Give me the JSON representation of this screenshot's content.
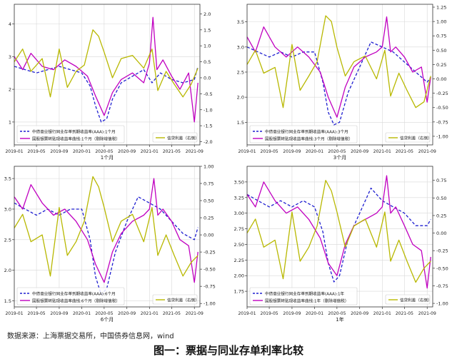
{
  "source_note": "数据来源：上海票据交易所，中国债券信息网，wind",
  "caption": "图一：票据与同业存单利率比较",
  "colors": {
    "ncd": "#1f1fd0",
    "bill": "#c000c0",
    "spread": "#b8b800"
  },
  "chart_data": [
    {
      "type": "line",
      "title": "",
      "xlabel": "1个月",
      "x_ticks": [
        "2019-01",
        "2019-05",
        "2019-09",
        "2020-01",
        "2020-05",
        "2020-09",
        "2021-01",
        "2021-05",
        "2021-09"
      ],
      "x_range": [
        "2019-01-01",
        "2021-10-01"
      ],
      "left_ylim": [
        0.3,
        4.6
      ],
      "left_ticks": [
        1,
        2,
        3,
        4
      ],
      "right_ylim": [
        -2.1,
        2.3
      ],
      "right_ticks": [
        -2.0,
        -1.5,
        -1.0,
        -0.5,
        0.0,
        0.5,
        1.0,
        1.5,
        2.0
      ],
      "grid": true,
      "legend_left": [
        "中债商业银行同业存单到期收益率(AAA):1个月",
        "国股银票转贴现收益率曲线:1个月（剔除增值税）"
      ],
      "legend_right": [
        "信贷利差（右侧）"
      ],
      "series": [
        {
          "name": "中债商业银行同业存单到期收益率(AAA):1个月",
          "axis": "left",
          "style": "dashed",
          "color": "ncd",
          "x": [
            "2019-01-01",
            "2019-03-01",
            "2019-05-01",
            "2019-07-01",
            "2019-09-01",
            "2019-11-01",
            "2020-01-01",
            "2020-02-15",
            "2020-03-15",
            "2020-04-15",
            "2020-05-15",
            "2020-06-15",
            "2020-08-01",
            "2020-10-01",
            "2020-12-01",
            "2021-01-15",
            "2021-03-01",
            "2021-05-01",
            "2021-07-01",
            "2021-09-01",
            "2021-09-20"
          ],
          "y": [
            2.7,
            2.6,
            2.5,
            2.6,
            2.7,
            2.6,
            2.5,
            2.1,
            1.5,
            1.0,
            1.1,
            1.7,
            2.2,
            2.4,
            2.6,
            2.2,
            2.5,
            2.3,
            2.2,
            2.3,
            2.7
          ]
        },
        {
          "name": "国股银票转贴现收益率曲线:1个月（剔除增值税）",
          "axis": "left",
          "style": "solid",
          "color": "bill",
          "x": [
            "2019-01-01",
            "2019-02-15",
            "2019-04-01",
            "2019-06-01",
            "2019-08-01",
            "2019-10-01",
            "2019-12-01",
            "2020-02-01",
            "2020-03-15",
            "2020-05-01",
            "2020-06-15",
            "2020-08-01",
            "2020-10-01",
            "2020-12-01",
            "2021-01-01",
            "2021-01-20",
            "2021-02-10",
            "2021-03-15",
            "2021-05-01",
            "2021-06-15",
            "2021-08-01",
            "2021-09-01",
            "2021-09-20"
          ],
          "y": [
            3.0,
            2.6,
            3.1,
            2.7,
            2.6,
            2.9,
            2.7,
            2.4,
            1.8,
            1.2,
            1.9,
            2.3,
            2.5,
            2.2,
            2.8,
            4.2,
            2.6,
            2.9,
            2.4,
            2.0,
            2.5,
            1.0,
            2.2
          ]
        },
        {
          "name": "信贷利差（右侧）",
          "axis": "right",
          "style": "solid",
          "color": "spread",
          "x": [
            "2019-01-01",
            "2019-02-15",
            "2019-04-01",
            "2019-06-01",
            "2019-07-15",
            "2019-09-01",
            "2019-10-15",
            "2019-12-01",
            "2020-01-15",
            "2020-03-01",
            "2020-04-01",
            "2020-05-01",
            "2020-06-15",
            "2020-08-01",
            "2020-10-01",
            "2020-12-01",
            "2021-01-15",
            "2021-02-15",
            "2021-04-01",
            "2021-05-15",
            "2021-07-01",
            "2021-08-15",
            "2021-09-20"
          ],
          "y": [
            0.5,
            0.9,
            0.2,
            0.6,
            -0.6,
            0.9,
            -0.3,
            0.2,
            0.4,
            1.5,
            1.3,
            0.8,
            0.0,
            0.6,
            0.7,
            0.3,
            0.9,
            -0.4,
            0.2,
            -0.2,
            -0.6,
            -0.2,
            0.3
          ]
        }
      ]
    },
    {
      "type": "line",
      "title": "",
      "xlabel": "3个月",
      "x_ticks": [
        "2019-01",
        "2019-05",
        "2019-09",
        "2020-01",
        "2020-05",
        "2020-09",
        "2021-01",
        "2021-05",
        "2021-09"
      ],
      "x_range": [
        "2019-01-01",
        "2021-10-01"
      ],
      "left_ylim": [
        1.05,
        3.85
      ],
      "left_ticks": [
        1.5,
        2.0,
        2.5,
        3.0,
        3.5
      ],
      "right_ylim": [
        -1.15,
        1.3
      ],
      "right_ticks": [
        -1.0,
        -0.75,
        -0.5,
        -0.25,
        0.0,
        0.25,
        0.5,
        0.75,
        1.0,
        1.25
      ],
      "grid": true,
      "legend_left": [
        "中债商业银行同业存单到期收益率(AAA):3个月",
        "国股银票转贴现收益率曲线:3个月（剔除增值税）"
      ],
      "legend_right": [
        "信贷利差（右侧）"
      ],
      "series": [
        {
          "name": "中债商业银行同业存单到期收益率(AAA):3个月",
          "axis": "left",
          "style": "dashed",
          "color": "ncd",
          "x": [
            "2019-01-01",
            "2019-03-01",
            "2019-05-01",
            "2019-07-01",
            "2019-09-01",
            "2019-11-01",
            "2020-01-01",
            "2020-02-15",
            "2020-03-15",
            "2020-04-15",
            "2020-05-15",
            "2020-07-01",
            "2020-09-01",
            "2020-11-01",
            "2021-01-01",
            "2021-03-01",
            "2021-05-01",
            "2021-07-01",
            "2021-09-01",
            "2021-09-20"
          ],
          "y": [
            3.0,
            2.9,
            2.8,
            2.9,
            2.8,
            2.9,
            2.9,
            2.3,
            1.7,
            1.45,
            1.5,
            2.1,
            2.6,
            3.1,
            3.0,
            2.9,
            2.7,
            2.5,
            2.3,
            2.4
          ]
        },
        {
          "name": "国股银票转贴现收益率曲线:3个月（剔除增值税）",
          "axis": "left",
          "style": "solid",
          "color": "bill",
          "x": [
            "2019-01-01",
            "2019-02-15",
            "2019-04-01",
            "2019-06-01",
            "2019-08-01",
            "2019-10-01",
            "2019-12-01",
            "2020-02-01",
            "2020-03-15",
            "2020-05-01",
            "2020-06-15",
            "2020-08-01",
            "2020-10-01",
            "2020-12-01",
            "2021-01-01",
            "2021-01-25",
            "2021-02-15",
            "2021-03-15",
            "2021-05-01",
            "2021-06-15",
            "2021-08-01",
            "2021-09-01",
            "2021-09-20"
          ],
          "y": [
            3.2,
            2.9,
            3.4,
            3.0,
            2.8,
            3.0,
            2.8,
            2.5,
            2.0,
            1.6,
            2.2,
            2.6,
            2.8,
            2.9,
            3.0,
            3.6,
            2.9,
            3.0,
            2.8,
            2.5,
            2.6,
            1.9,
            2.4
          ]
        },
        {
          "name": "信贷利差（右侧）",
          "axis": "right",
          "style": "solid",
          "color": "spread",
          "x": [
            "2019-01-01",
            "2019-02-15",
            "2019-04-01",
            "2019-06-01",
            "2019-07-15",
            "2019-09-01",
            "2019-10-15",
            "2019-12-01",
            "2020-01-15",
            "2020-03-01",
            "2020-04-01",
            "2020-05-01",
            "2020-06-15",
            "2020-08-01",
            "2020-10-01",
            "2020-12-01",
            "2021-01-15",
            "2021-02-15",
            "2021-04-01",
            "2021-05-15",
            "2021-07-01",
            "2021-08-15",
            "2021-09-20"
          ],
          "y": [
            0.25,
            0.5,
            0.1,
            0.2,
            -0.5,
            0.6,
            -0.2,
            0.05,
            0.3,
            1.1,
            1.0,
            0.55,
            0.05,
            0.3,
            0.4,
            0.0,
            0.5,
            -0.3,
            0.1,
            -0.2,
            -0.5,
            -0.4,
            0.05
          ]
        }
      ]
    },
    {
      "type": "line",
      "title": "",
      "xlabel": "6个月",
      "x_ticks": [
        "2019-01",
        "2019-05",
        "2019-09",
        "2020-01",
        "2020-05",
        "2020-09",
        "2021-01",
        "2021-05",
        "2021-09"
      ],
      "x_range": [
        "2019-01-01",
        "2021-10-01"
      ],
      "left_ylim": [
        1.4,
        3.7
      ],
      "left_ticks": [
        1.5,
        2.0,
        2.5,
        3.0,
        3.5
      ],
      "right_ylim": [
        -1.05,
        1.0
      ],
      "right_ticks": [
        -1.0,
        -0.75,
        -0.5,
        -0.25,
        0.0,
        0.25,
        0.5,
        0.75,
        1.0
      ],
      "grid": true,
      "legend_left": [
        "中债商业银行同业存单到期收益率(AAA):6个月",
        "国股银票转贴现收益率曲线:6个月（剔除增值税）"
      ],
      "legend_right": [
        "信贷利差（右侧）"
      ],
      "series": [
        {
          "name": "中债商业银行同业存单到期收益率(AAA):6个月",
          "axis": "left",
          "style": "dashed",
          "color": "ncd",
          "x": [
            "2019-01-01",
            "2019-03-01",
            "2019-05-01",
            "2019-07-01",
            "2019-09-01",
            "2019-11-01",
            "2020-01-01",
            "2020-02-15",
            "2020-03-15",
            "2020-04-15",
            "2020-05-15",
            "2020-07-01",
            "2020-09-01",
            "2020-11-01",
            "2021-01-01",
            "2021-03-01",
            "2021-05-01",
            "2021-07-01",
            "2021-09-01",
            "2021-09-20"
          ],
          "y": [
            3.1,
            3.0,
            2.9,
            3.0,
            2.9,
            3.0,
            3.0,
            2.5,
            1.9,
            1.6,
            1.7,
            2.3,
            2.8,
            3.2,
            3.1,
            3.0,
            2.8,
            2.6,
            2.5,
            2.7
          ]
        },
        {
          "name": "国股银票转贴现收益率曲线:6个月（剔除增值税）",
          "axis": "left",
          "style": "solid",
          "color": "bill",
          "x": [
            "2019-01-01",
            "2019-02-15",
            "2019-04-01",
            "2019-06-01",
            "2019-08-01",
            "2019-10-01",
            "2019-12-01",
            "2020-02-01",
            "2020-03-15",
            "2020-05-01",
            "2020-06-15",
            "2020-08-01",
            "2020-10-01",
            "2020-12-01",
            "2021-01-01",
            "2021-01-25",
            "2021-02-15",
            "2021-03-15",
            "2021-05-01",
            "2021-06-15",
            "2021-08-01",
            "2021-09-01",
            "2021-09-20"
          ],
          "y": [
            3.2,
            3.0,
            3.4,
            3.1,
            2.9,
            3.0,
            2.8,
            2.5,
            2.1,
            1.8,
            2.3,
            2.6,
            2.8,
            2.9,
            3.0,
            3.5,
            2.9,
            3.0,
            2.8,
            2.5,
            2.4,
            1.8,
            2.3
          ]
        },
        {
          "name": "信贷利差（右侧）",
          "axis": "right",
          "style": "solid",
          "color": "spread",
          "x": [
            "2019-01-01",
            "2019-02-15",
            "2019-04-01",
            "2019-06-01",
            "2019-07-15",
            "2019-09-01",
            "2019-10-15",
            "2019-12-01",
            "2020-01-15",
            "2020-03-01",
            "2020-04-01",
            "2020-05-01",
            "2020-06-15",
            "2020-08-01",
            "2020-10-01",
            "2020-12-01",
            "2021-01-15",
            "2021-02-15",
            "2021-04-01",
            "2021-05-15",
            "2021-07-01",
            "2021-08-15",
            "2021-09-20"
          ],
          "y": [
            0.1,
            0.3,
            -0.1,
            0.0,
            -0.6,
            0.4,
            -0.3,
            -0.1,
            0.2,
            0.85,
            0.7,
            0.4,
            -0.1,
            0.2,
            0.3,
            -0.1,
            0.4,
            -0.3,
            0.0,
            -0.3,
            -0.6,
            -0.4,
            -0.3
          ]
        }
      ]
    },
    {
      "type": "line",
      "title": "",
      "xlabel": "1年",
      "x_ticks": [
        "2019-01",
        "2019-05",
        "2019-09",
        "2020-01",
        "2020-05",
        "2020-09",
        "2021-01",
        "2021-05",
        "2021-09"
      ],
      "x_range": [
        "2019-01-01",
        "2021-10-01"
      ],
      "left_ylim": [
        1.5,
        3.75
      ],
      "left_ticks": [
        1.75,
        2.0,
        2.25,
        2.5,
        2.75,
        3.0,
        3.25,
        3.5
      ],
      "right_ylim": [
        -1.05,
        0.95
      ],
      "right_ticks": [
        -1.0,
        -0.75,
        -0.5,
        -0.25,
        0.0,
        0.25,
        0.5,
        0.75
      ],
      "grid": true,
      "legend_left": [
        "中债商业银行同业存单到期收益率(AAA):1年",
        "国股银票转贴现收益率曲线:1年（剔除增值税）"
      ],
      "legend_right": [
        "信贷利差（右侧）"
      ],
      "series": [
        {
          "name": "中债商业银行同业存单到期收益率(AAA):1年",
          "axis": "left",
          "style": "dashed",
          "color": "ncd",
          "x": [
            "2019-01-01",
            "2019-03-01",
            "2019-05-01",
            "2019-07-01",
            "2019-09-01",
            "2019-11-01",
            "2020-01-01",
            "2020-02-15",
            "2020-03-15",
            "2020-04-15",
            "2020-05-15",
            "2020-07-01",
            "2020-09-01",
            "2020-11-01",
            "2021-01-01",
            "2021-03-01",
            "2021-05-01",
            "2021-07-01",
            "2021-09-01",
            "2021-09-20"
          ],
          "y": [
            3.3,
            3.2,
            3.1,
            3.2,
            3.1,
            3.2,
            3.1,
            2.7,
            2.2,
            1.9,
            2.0,
            2.6,
            3.0,
            3.4,
            3.2,
            3.1,
            3.0,
            2.8,
            2.8,
            2.9
          ]
        },
        {
          "name": "国股银票转贴现收益率曲线:1年（剔除增值税）",
          "axis": "left",
          "style": "solid",
          "color": "bill",
          "x": [
            "2019-01-01",
            "2019-02-15",
            "2019-04-01",
            "2019-06-01",
            "2019-08-01",
            "2019-10-01",
            "2019-12-01",
            "2020-02-01",
            "2020-03-15",
            "2020-05-01",
            "2020-06-15",
            "2020-08-01",
            "2020-10-01",
            "2020-12-01",
            "2021-01-01",
            "2021-01-25",
            "2021-02-15",
            "2021-03-15",
            "2021-05-01",
            "2021-06-15",
            "2021-08-01",
            "2021-09-01",
            "2021-09-20"
          ],
          "y": [
            3.3,
            3.1,
            3.5,
            3.2,
            3.0,
            3.1,
            2.9,
            2.6,
            2.2,
            2.0,
            2.5,
            2.8,
            2.9,
            3.0,
            3.1,
            3.6,
            3.0,
            3.1,
            2.8,
            2.5,
            2.4,
            1.8,
            2.3
          ]
        },
        {
          "name": "信贷利差（右侧）",
          "axis": "right",
          "style": "solid",
          "color": "spread",
          "x": [
            "2019-01-01",
            "2019-02-15",
            "2019-04-01",
            "2019-06-01",
            "2019-07-15",
            "2019-09-01",
            "2019-10-15",
            "2019-12-01",
            "2020-01-15",
            "2020-03-01",
            "2020-04-01",
            "2020-05-01",
            "2020-06-15",
            "2020-08-01",
            "2020-10-01",
            "2020-12-01",
            "2021-01-15",
            "2021-02-15",
            "2021-04-01",
            "2021-05-15",
            "2021-07-01",
            "2021-08-15",
            "2021-09-20"
          ],
          "y": [
            0.0,
            0.2,
            -0.2,
            -0.1,
            -0.65,
            0.3,
            -0.4,
            -0.2,
            0.1,
            0.75,
            0.6,
            0.3,
            -0.2,
            0.1,
            0.2,
            -0.2,
            0.3,
            -0.4,
            -0.1,
            -0.4,
            -0.7,
            -0.5,
            -0.4
          ]
        }
      ]
    }
  ]
}
